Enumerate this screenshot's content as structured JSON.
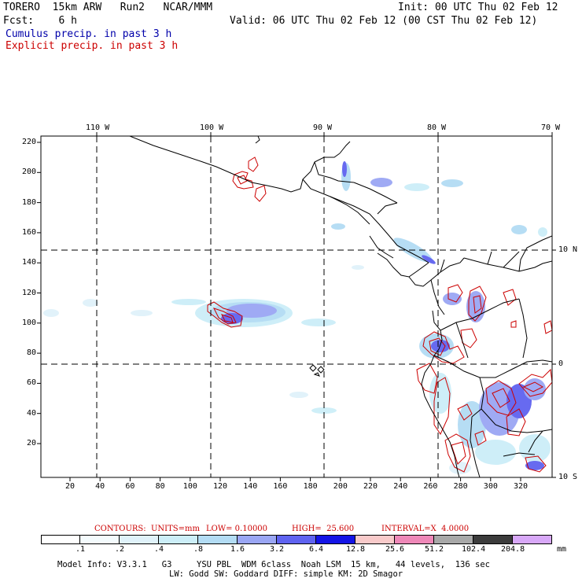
{
  "header": {
    "line1_left": "TORERO  15km ARW   Run2   NCAR/MMM",
    "line1_right": "Init: 00 UTC Thu 02 Feb 12",
    "line2_left": "Fcst:    6 h",
    "line2_right": "Valid: 06 UTC Thu 02 Feb 12 (00 CST Thu 02 Feb 12)"
  },
  "legend": {
    "cumulus": "Cumulus precip. in past 3 h",
    "explicit": "Explicit precip. in past 3 h",
    "cumulus_color": "#0000aa",
    "explicit_color": "#cc0000"
  },
  "map": {
    "top_ticks": [
      "110 W",
      "100 W",
      "90 W",
      "80 W",
      "70 W"
    ],
    "right_labels": [
      "10 N",
      "0",
      "10 S"
    ],
    "left_ticks": [
      "220",
      "200",
      "180",
      "160",
      "140",
      "120",
      "100",
      "80",
      "60",
      "40",
      "20"
    ],
    "bottom_ticks": [
      "20",
      "40",
      "60",
      "80",
      "100",
      "120",
      "140",
      "160",
      "180",
      "200",
      "220",
      "240",
      "260",
      "280",
      "300",
      "320"
    ]
  },
  "contour_info": {
    "units": "CONTOURS:  UNITS=mm",
    "low": "LOW= 0.10000",
    "high": "HIGH=  25.600",
    "interval": "INTERVAL=X  4.0000"
  },
  "colorbar": {
    "labels": [
      ".1",
      ".2",
      ".4",
      ".8",
      "1.6",
      "3.2",
      "6.4",
      "12.8",
      "25.6",
      "51.2",
      "102.4",
      "204.8"
    ],
    "unit": "mm",
    "colors": [
      "#ffffff",
      "#f4fbfd",
      "#e0f2fa",
      "#cceef8",
      "#b3dcf4",
      "#9aa6f4",
      "#5f63f0",
      "#1414e6",
      "#f8caca",
      "#ee88b8",
      "#a8a8a8",
      "#3c3c3c",
      "#d8a8f8"
    ]
  },
  "footer": {
    "line1": "Model Info: V3.3.1   G3     YSU PBL  WDM 6class  Noah LSM  15 km,   44 levels,  136 sec",
    "line2": "LW: Godd SW: Goddard DIFF: simple KM: 2D Smagor"
  }
}
